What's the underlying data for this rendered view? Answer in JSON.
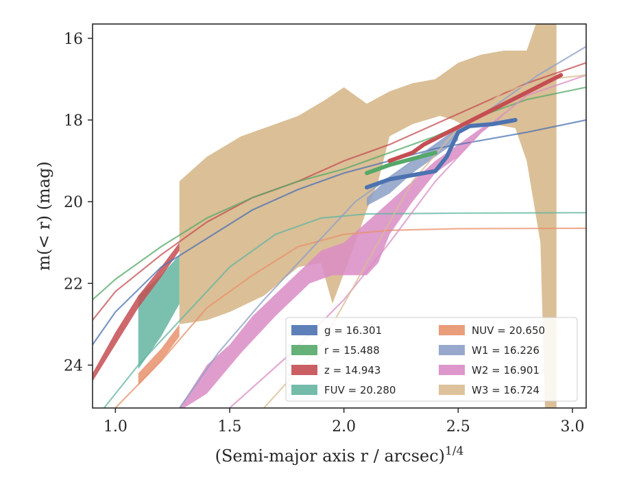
{
  "chart_data": {
    "type": "area",
    "xlabel": "(Semi-major axis r / arcsec)^{1/4}",
    "ylabel": "m(< r) (mag)",
    "xlim": [
      0.9,
      3.06
    ],
    "ylim": [
      25.05,
      15.65
    ],
    "y_inverted": true,
    "xticks": [
      1.0,
      1.5,
      2.0,
      2.5,
      3.0
    ],
    "xtick_labels": [
      "1.0",
      "1.5",
      "2.0",
      "2.5",
      "3.0"
    ],
    "yticks": [
      16,
      18,
      20,
      22,
      24
    ],
    "ytick_labels": [
      "16",
      "18",
      "20",
      "22",
      "24"
    ],
    "grid": false,
    "legend_position": "lower-right",
    "legend_columns": 2,
    "legend": [
      {
        "label": "g = 16.301",
        "color": "#4c72b0"
      },
      {
        "label": "r = 15.488",
        "color": "#55a868"
      },
      {
        "label": "z = 14.943",
        "color": "#c44e52"
      },
      {
        "label": "FUV = 20.280",
        "color": "#64b5a1"
      },
      {
        "label": "NUV = 20.650",
        "color": "#e8926c"
      },
      {
        "label": "W1 = 16.226",
        "color": "#8c9fc6"
      },
      {
        "label": "W2 = 16.901",
        "color": "#d98cc4"
      },
      {
        "label": "W3 = 16.724",
        "color": "#d9bc91"
      }
    ],
    "series": [
      {
        "name": "W3",
        "color": "#d9bc91",
        "kind": "band",
        "upper": [
          [
            1.28,
            19.5
          ],
          [
            1.4,
            18.9
          ],
          [
            1.55,
            18.4
          ],
          [
            1.7,
            18.1
          ],
          [
            1.8,
            17.9
          ],
          [
            1.92,
            17.5
          ],
          [
            2.0,
            17.2
          ],
          [
            2.1,
            17.6
          ],
          [
            2.2,
            17.3
          ],
          [
            2.3,
            17.1
          ],
          [
            2.4,
            17.0
          ],
          [
            2.5,
            16.6
          ],
          [
            2.6,
            16.4
          ],
          [
            2.7,
            16.3
          ],
          [
            2.8,
            16.3
          ],
          [
            2.84,
            15.65
          ],
          [
            2.93,
            15.65
          ]
        ],
        "lower": [
          [
            2.93,
            25.05
          ],
          [
            2.88,
            25.05
          ],
          [
            2.86,
            21.0
          ],
          [
            2.8,
            19.0
          ],
          [
            2.75,
            18.2
          ],
          [
            2.65,
            18.1
          ],
          [
            2.55,
            18.2
          ],
          [
            2.48,
            18.0
          ],
          [
            2.42,
            17.9
          ],
          [
            2.3,
            18.1
          ],
          [
            2.2,
            18.4
          ],
          [
            2.15,
            19.5
          ],
          [
            2.1,
            20.2
          ],
          [
            2.05,
            21.0
          ],
          [
            1.95,
            22.5
          ],
          [
            1.9,
            21.5
          ],
          [
            1.8,
            21.6
          ],
          [
            1.65,
            22.3
          ],
          [
            1.5,
            22.7
          ],
          [
            1.4,
            22.9
          ],
          [
            1.28,
            23.0
          ]
        ]
      },
      {
        "name": "W2",
        "color": "#d98cc4",
        "kind": "band",
        "upper": [
          [
            1.28,
            25.05
          ],
          [
            1.4,
            24.0
          ],
          [
            1.5,
            23.5
          ],
          [
            1.6,
            22.8
          ],
          [
            1.75,
            22.0
          ],
          [
            1.9,
            21.2
          ],
          [
            2.0,
            21.0
          ],
          [
            2.1,
            20.5
          ],
          [
            2.2,
            20.0
          ],
          [
            2.3,
            19.5
          ],
          [
            2.4,
            19.0
          ],
          [
            2.5,
            18.6
          ],
          [
            2.6,
            18.2
          ],
          [
            2.7,
            17.9
          ]
        ],
        "lower": [
          [
            2.7,
            17.9
          ],
          [
            2.6,
            18.3
          ],
          [
            2.5,
            18.9
          ],
          [
            2.4,
            19.3
          ],
          [
            2.3,
            20.0
          ],
          [
            2.2,
            20.8
          ],
          [
            2.15,
            21.5
          ],
          [
            2.1,
            21.8
          ],
          [
            1.95,
            21.8
          ],
          [
            1.85,
            22.0
          ],
          [
            1.7,
            22.8
          ],
          [
            1.55,
            23.7
          ],
          [
            1.4,
            24.7
          ],
          [
            1.3,
            25.05
          ]
        ]
      },
      {
        "name": "FUV",
        "color": "#64b5a1",
        "kind": "band",
        "upper": [
          [
            1.1,
            22.3
          ],
          [
            1.2,
            21.8
          ],
          [
            1.28,
            21.3
          ]
        ],
        "lower": [
          [
            1.28,
            22.5
          ],
          [
            1.2,
            23.3
          ],
          [
            1.1,
            24.1
          ]
        ]
      },
      {
        "name": "NUV",
        "color": "#e8926c",
        "kind": "band",
        "upper": [
          [
            1.1,
            24.2
          ],
          [
            1.2,
            23.6
          ],
          [
            1.28,
            23.0
          ]
        ],
        "lower": [
          [
            1.28,
            23.3
          ],
          [
            1.2,
            23.9
          ],
          [
            1.1,
            24.5
          ]
        ]
      },
      {
        "name": "z",
        "color": "#c44e52",
        "kind": "band",
        "upper": [
          [
            0.9,
            24.2
          ],
          [
            1.0,
            23.2
          ],
          [
            1.1,
            22.3
          ],
          [
            1.2,
            21.6
          ],
          [
            1.28,
            21.0
          ]
        ],
        "lower": [
          [
            1.28,
            21.2
          ],
          [
            1.2,
            21.85
          ],
          [
            1.1,
            22.6
          ],
          [
            1.0,
            23.5
          ],
          [
            0.9,
            24.4
          ]
        ]
      },
      {
        "name": "W1",
        "color": "#8c9fc6",
        "kind": "band",
        "upper": [
          [
            2.1,
            19.9
          ],
          [
            2.2,
            19.4
          ],
          [
            2.3,
            19.0
          ],
          [
            2.4,
            18.6
          ],
          [
            2.5,
            18.2
          ]
        ],
        "lower": [
          [
            2.5,
            18.5
          ],
          [
            2.4,
            18.9
          ],
          [
            2.3,
            19.3
          ],
          [
            2.2,
            19.8
          ],
          [
            2.1,
            20.1
          ]
        ]
      },
      {
        "name": "z",
        "color": "#c44e52",
        "kind": "line",
        "points": [
          [
            0.9,
            22.9
          ],
          [
            1.0,
            22.2
          ],
          [
            1.2,
            21.3
          ],
          [
            1.4,
            20.5
          ],
          [
            1.6,
            19.9
          ],
          [
            1.8,
            19.5
          ],
          [
            2.0,
            19.0
          ],
          [
            2.2,
            18.6
          ],
          [
            2.4,
            18.1
          ],
          [
            2.6,
            17.6
          ],
          [
            2.8,
            17.1
          ],
          [
            3.06,
            16.6
          ]
        ]
      },
      {
        "name": "r",
        "color": "#55a868",
        "kind": "line",
        "points": [
          [
            0.9,
            22.4
          ],
          [
            1.0,
            21.9
          ],
          [
            1.2,
            21.1
          ],
          [
            1.4,
            20.4
          ],
          [
            1.6,
            19.9
          ],
          [
            1.8,
            19.5
          ],
          [
            2.0,
            19.2
          ],
          [
            2.2,
            18.8
          ],
          [
            2.4,
            18.4
          ],
          [
            2.6,
            17.9
          ],
          [
            2.8,
            17.5
          ],
          [
            3.06,
            17.2
          ]
        ]
      },
      {
        "name": "g",
        "color": "#4c72b0",
        "kind": "line",
        "points": [
          [
            0.9,
            23.5
          ],
          [
            1.0,
            22.7
          ],
          [
            1.2,
            21.6
          ],
          [
            1.4,
            20.9
          ],
          [
            1.6,
            20.2
          ],
          [
            1.8,
            19.7
          ],
          [
            2.0,
            19.3
          ],
          [
            2.2,
            19.0
          ],
          [
            2.4,
            18.7
          ],
          [
            2.6,
            18.5
          ],
          [
            2.8,
            18.3
          ],
          [
            3.06,
            18.0
          ]
        ]
      },
      {
        "name": "FUV",
        "color": "#64b5a1",
        "kind": "line",
        "points": [
          [
            0.95,
            25.05
          ],
          [
            1.1,
            24.0
          ],
          [
            1.3,
            22.8
          ],
          [
            1.5,
            21.6
          ],
          [
            1.7,
            20.8
          ],
          [
            1.9,
            20.4
          ],
          [
            2.1,
            20.3
          ],
          [
            2.5,
            20.28
          ],
          [
            3.06,
            20.27
          ]
        ]
      },
      {
        "name": "NUV",
        "color": "#e8926c",
        "kind": "line",
        "points": [
          [
            1.0,
            25.05
          ],
          [
            1.2,
            23.9
          ],
          [
            1.4,
            22.6
          ],
          [
            1.6,
            21.8
          ],
          [
            1.8,
            21.1
          ],
          [
            2.0,
            20.8
          ],
          [
            2.2,
            20.7
          ],
          [
            2.5,
            20.66
          ],
          [
            3.06,
            20.65
          ]
        ]
      },
      {
        "name": "W1",
        "color": "#8c9fc6",
        "kind": "line",
        "points": [
          [
            1.28,
            25.05
          ],
          [
            1.45,
            23.7
          ],
          [
            1.65,
            22.4
          ],
          [
            1.85,
            21.2
          ],
          [
            2.05,
            20.0
          ],
          [
            2.25,
            19.2
          ],
          [
            2.45,
            18.4
          ],
          [
            2.65,
            17.7
          ],
          [
            2.85,
            16.9
          ],
          [
            3.06,
            16.2
          ]
        ]
      },
      {
        "name": "W2",
        "color": "#d98cc4",
        "kind": "line",
        "points": [
          [
            1.5,
            25.05
          ],
          [
            1.75,
            23.8
          ],
          [
            2.0,
            22.4
          ],
          [
            2.2,
            21.0
          ],
          [
            2.4,
            19.5
          ],
          [
            2.6,
            18.3
          ],
          [
            2.8,
            17.4
          ],
          [
            3.06,
            16.9
          ]
        ]
      },
      {
        "name": "W3",
        "color": "#d9bc91",
        "kind": "line",
        "points": [
          [
            1.65,
            25.05
          ],
          [
            1.9,
            23.5
          ],
          [
            2.1,
            21.5
          ],
          [
            2.3,
            19.5
          ],
          [
            2.5,
            18.2
          ],
          [
            2.7,
            17.3
          ],
          [
            2.9,
            17.0
          ],
          [
            3.06,
            16.9
          ]
        ]
      },
      {
        "name": "g",
        "color": "#4c72b0",
        "kind": "line-thick",
        "points": [
          [
            2.1,
            19.65
          ],
          [
            2.2,
            19.45
          ],
          [
            2.3,
            19.35
          ],
          [
            2.4,
            19.25
          ],
          [
            2.45,
            18.9
          ],
          [
            2.5,
            18.3
          ],
          [
            2.55,
            18.15
          ],
          [
            2.65,
            18.1
          ],
          [
            2.75,
            18.0
          ]
        ]
      },
      {
        "name": "r",
        "color": "#55a868",
        "kind": "line-thick",
        "points": [
          [
            2.1,
            19.3
          ],
          [
            2.2,
            19.1
          ],
          [
            2.3,
            18.95
          ],
          [
            2.4,
            18.8
          ]
        ]
      },
      {
        "name": "z",
        "color": "#c44e52",
        "kind": "line-thick",
        "points": [
          [
            2.2,
            19.0
          ],
          [
            2.3,
            18.8
          ],
          [
            2.35,
            18.6
          ],
          [
            2.42,
            18.4
          ],
          [
            2.95,
            16.9
          ]
        ]
      }
    ]
  }
}
